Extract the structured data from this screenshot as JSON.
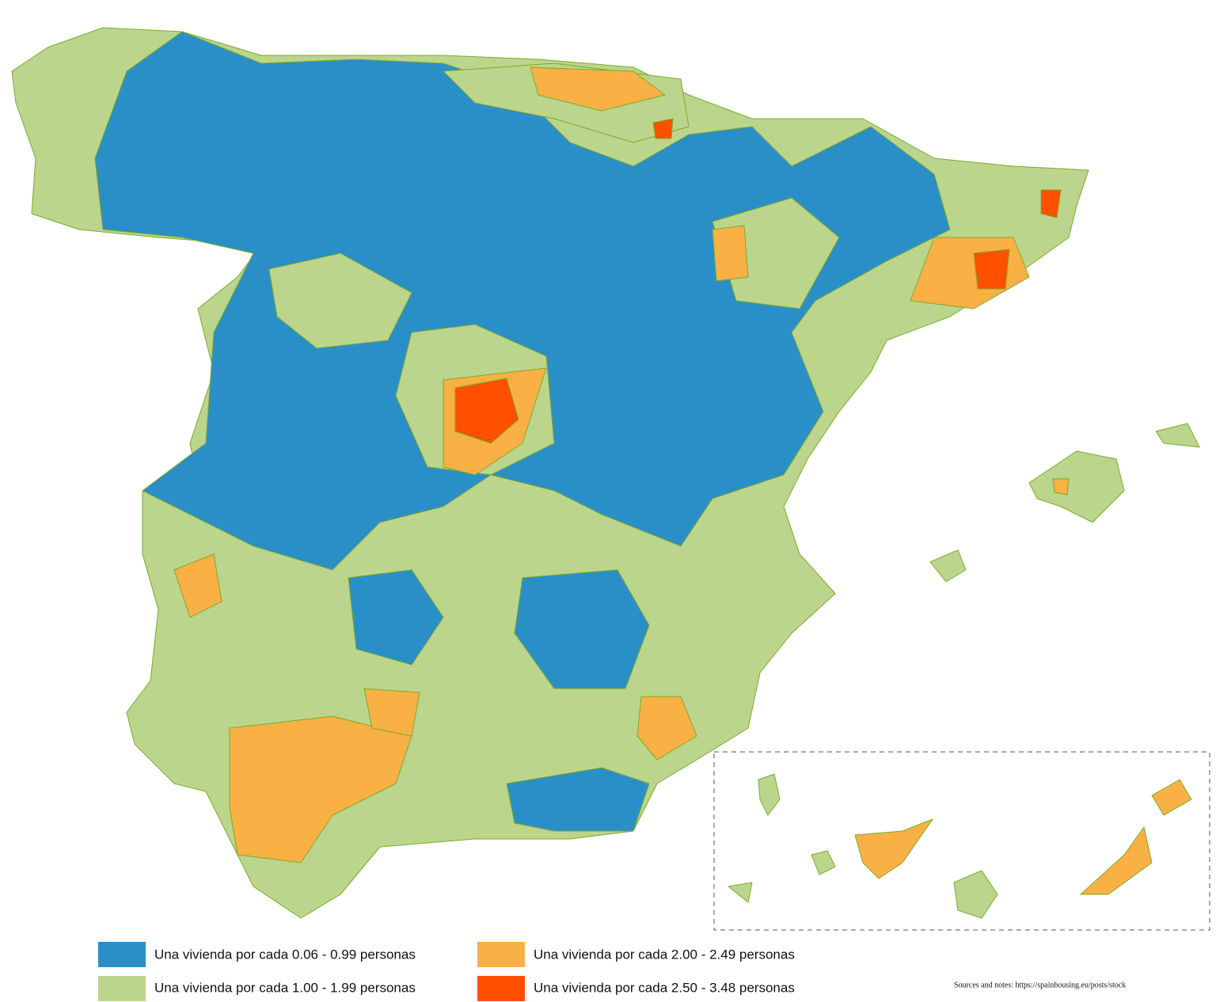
{
  "legend": [
    {
      "label": "Una vivienda por cada 0.06 - 0.99 personas",
      "color": "#2b8fc7"
    },
    {
      "label": "Una vivienda por cada 1.00 - 1.99 personas",
      "color": "#bcd58c"
    },
    {
      "label": "Una vivienda por cada 2.00 - 2.49 personas",
      "color": "#f9b045"
    },
    {
      "label": "Una vivienda por cada 2.50 - 3.48 personas",
      "color": "#ff5000"
    }
  ],
  "source": "Sources and notes: https://spainhousing.eu/posts/stock"
}
